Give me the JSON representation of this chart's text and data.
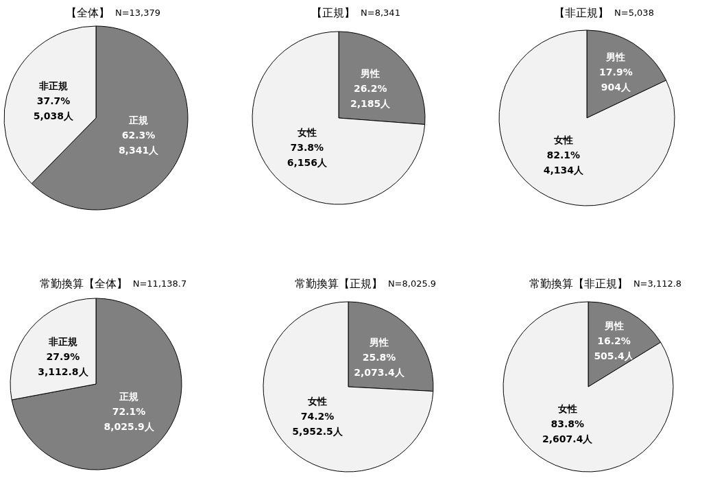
{
  "chart_data": [
    {
      "type": "pie",
      "title": "【全体】",
      "subtitle": "N=13,379",
      "categories": [
        "正規",
        "非正規"
      ],
      "values": [
        8341,
        5038
      ],
      "colors": [
        "#808080",
        "#f2f2f2"
      ],
      "value_labels": [
        "62.3%\n8,341人",
        "37.7%\n5,038人"
      ]
    },
    {
      "type": "pie",
      "title": "【正規】",
      "subtitle": "N=8,341",
      "categories": [
        "男性",
        "女性"
      ],
      "values": [
        2185,
        6156
      ],
      "colors": [
        "#808080",
        "#f2f2f2"
      ],
      "value_labels": [
        "26.2%\n2,185人",
        "73.8%\n6,156人"
      ]
    },
    {
      "type": "pie",
      "title": "【非正規】",
      "subtitle": "N=5,038",
      "categories": [
        "男性",
        "女性"
      ],
      "values": [
        904,
        4134
      ],
      "colors": [
        "#808080",
        "#f2f2f2"
      ],
      "value_labels": [
        "17.9%\n904人",
        "82.1%\n4,134人"
      ]
    },
    {
      "type": "pie",
      "title": "常勤換算【全体】",
      "subtitle": "N=11,138.7",
      "categories": [
        "正規",
        "非正規"
      ],
      "values": [
        8025.9,
        3112.8
      ],
      "colors": [
        "#808080",
        "#f2f2f2"
      ],
      "value_labels": [
        "72.1%\n8,025.9人",
        "27.9%\n3,112.8人"
      ]
    },
    {
      "type": "pie",
      "title": "常勤換算【正規】",
      "subtitle": "N=8,025.9",
      "categories": [
        "男性",
        "女性"
      ],
      "values": [
        2073.4,
        5952.5
      ],
      "colors": [
        "#808080",
        "#f2f2f2"
      ],
      "value_labels": [
        "25.8%\n2,073.4人",
        "74.2%\n5,952.5人"
      ]
    },
    {
      "type": "pie",
      "title": "常勤換算【非正規】",
      "subtitle": "N=3,112.8",
      "categories": [
        "男性",
        "女性"
      ],
      "values": [
        505.4,
        2607.4
      ],
      "colors": [
        "#808080",
        "#f2f2f2"
      ],
      "value_labels": [
        "16.2%\n505.4人",
        "83.8%\n2,607.4人"
      ]
    }
  ]
}
